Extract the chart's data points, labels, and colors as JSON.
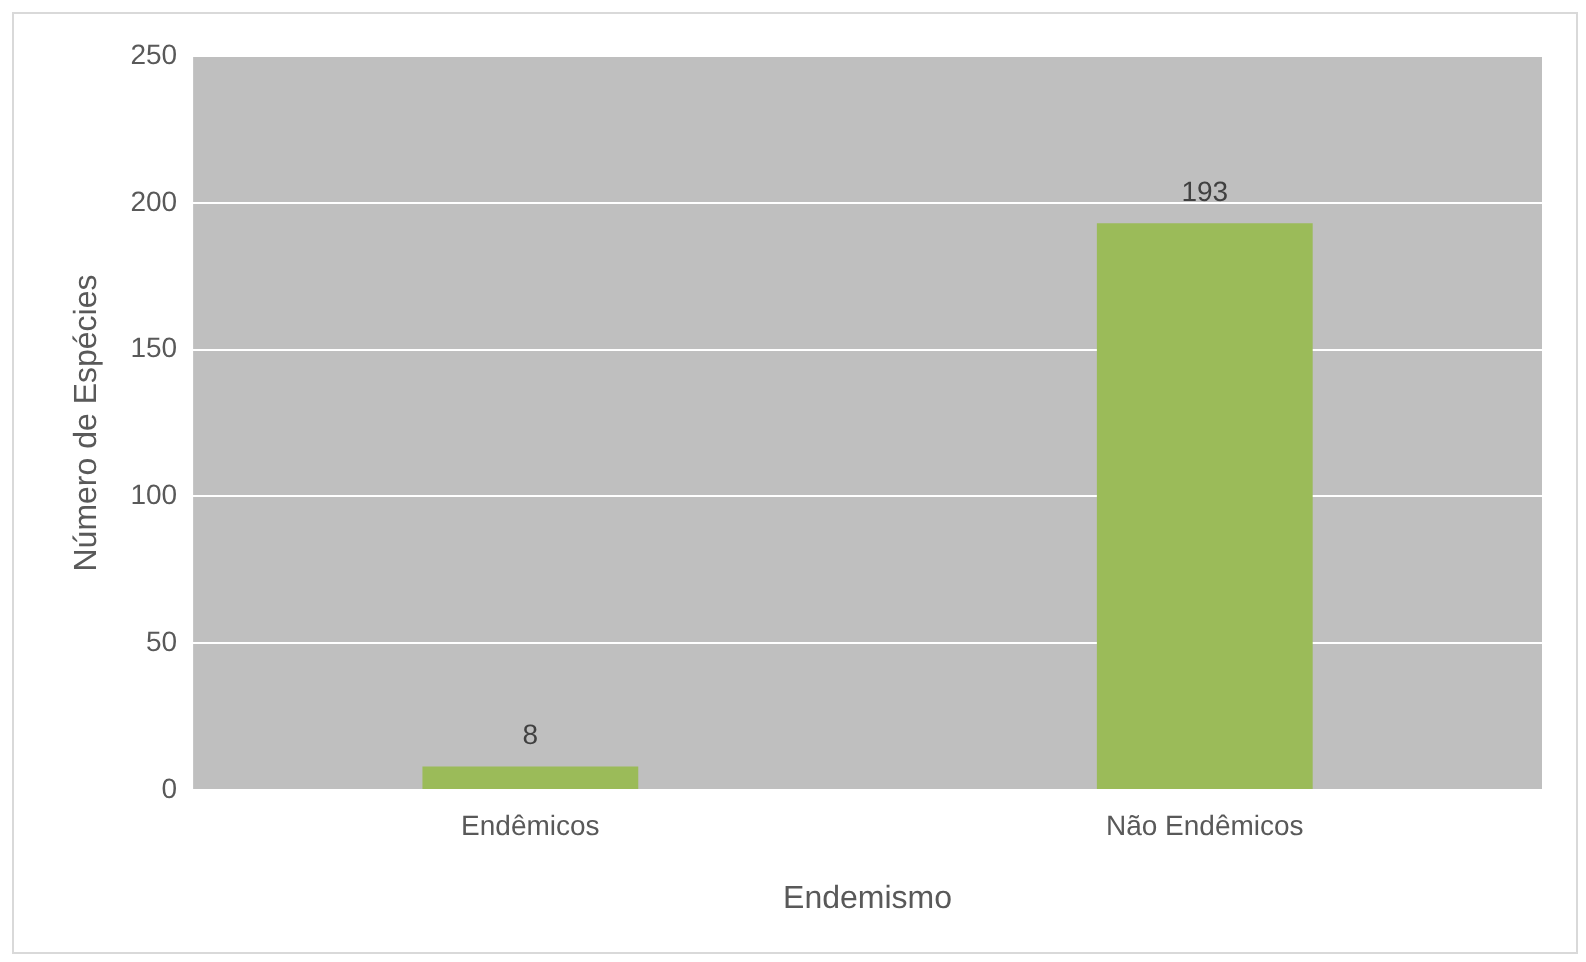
{
  "chart_data": {
    "type": "bar",
    "xlabel": "Endemismo",
    "ylabel": "Número de Espécies",
    "categories": [
      "Endêmicos",
      "Não Endêmicos"
    ],
    "values": [
      8,
      193
    ],
    "color": "#9bbb59",
    "ylim": [
      0,
      250
    ],
    "yticks": [
      0,
      50,
      100,
      150,
      200,
      250
    ],
    "grid": "y",
    "data_labels": true,
    "legend": false
  }
}
